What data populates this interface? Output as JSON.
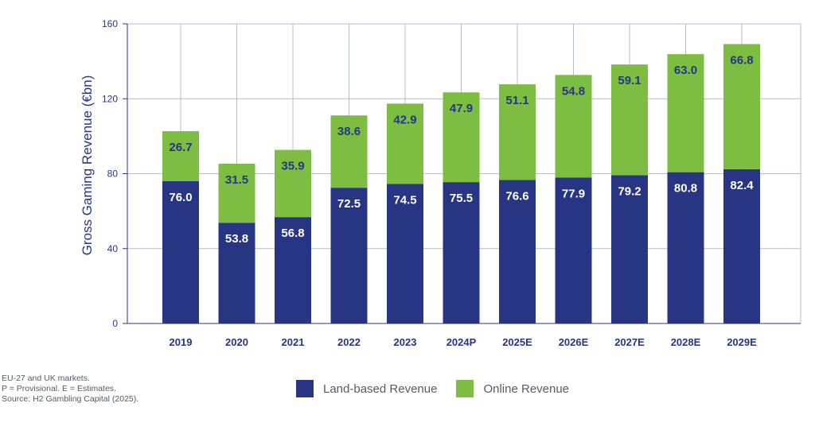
{
  "chart_data": {
    "type": "bar",
    "stacked": true,
    "categories": [
      "2019",
      "2020",
      "2021",
      "2022",
      "2023",
      "2024P",
      "2025E",
      "2026E",
      "2027E",
      "2028E",
      "2029E"
    ],
    "series": [
      {
        "name": "Land-based Revenue",
        "color": "#283583",
        "values": [
          76.0,
          53.8,
          56.8,
          72.5,
          74.5,
          75.5,
          76.6,
          77.9,
          79.2,
          80.8,
          82.4
        ]
      },
      {
        "name": "Online Revenue",
        "color": "#7dbd42",
        "values": [
          26.7,
          31.5,
          35.9,
          38.6,
          42.9,
          47.9,
          51.1,
          54.8,
          59.1,
          63.0,
          66.8
        ]
      }
    ],
    "ylabel": "Gross Gaming Revenue (€bn)",
    "xlabel": "",
    "ylim": [
      0,
      160
    ],
    "yticks": [
      0,
      40,
      80,
      120,
      160
    ],
    "grid": true,
    "legend_position": "bottom"
  },
  "notes": [
    "EU-27 and UK markets.",
    "P = Provisional. E = Estimates.",
    "Source: H2 Gambling Capital (2025)."
  ]
}
